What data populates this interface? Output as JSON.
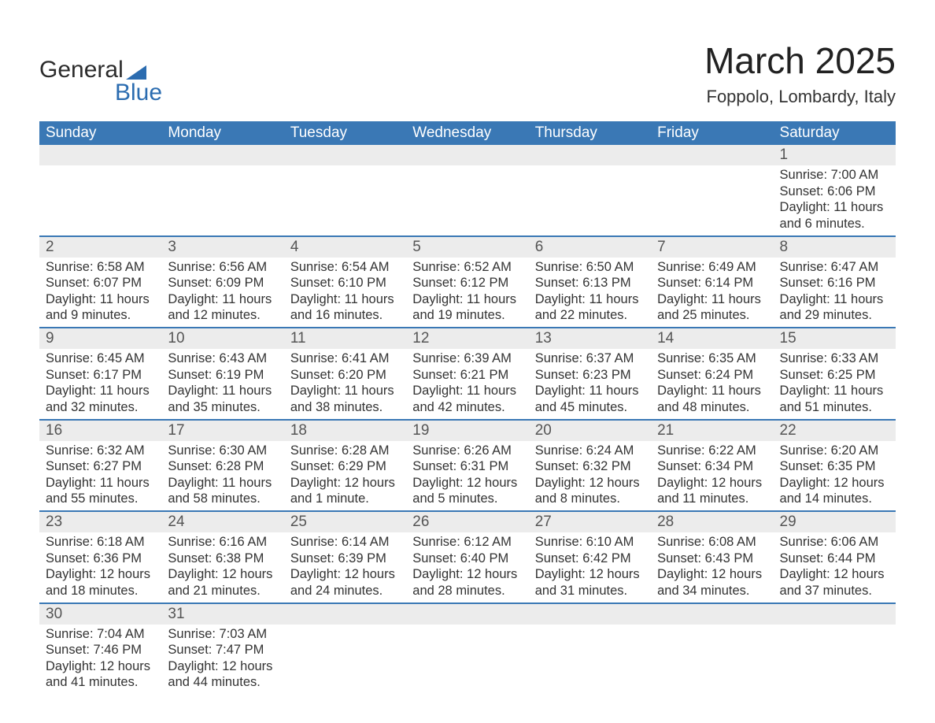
{
  "logo": {
    "word1": "General",
    "word2": "Blue"
  },
  "title": "March 2025",
  "location": "Foppolo, Lombardy, Italy",
  "colors": {
    "header_bg": "#3a78b5",
    "header_fg": "#ffffff",
    "daynum_bg": "#ececec",
    "row_divider": "#3a78b5",
    "logo_blue": "#2b6cb0",
    "text": "#333333",
    "background": "#ffffff"
  },
  "fonts": {
    "title_size_pt": 34,
    "location_size_pt": 16,
    "header_size_pt": 14,
    "body_size_pt": 12
  },
  "calendar": {
    "type": "table",
    "columns": [
      "Sunday",
      "Monday",
      "Tuesday",
      "Wednesday",
      "Thursday",
      "Friday",
      "Saturday"
    ],
    "weeks": [
      [
        null,
        null,
        null,
        null,
        null,
        null,
        {
          "n": "1",
          "sr": "7:00 AM",
          "ss": "6:06 PM",
          "dl": "11 hours and 6 minutes."
        }
      ],
      [
        {
          "n": "2",
          "sr": "6:58 AM",
          "ss": "6:07 PM",
          "dl": "11 hours and 9 minutes."
        },
        {
          "n": "3",
          "sr": "6:56 AM",
          "ss": "6:09 PM",
          "dl": "11 hours and 12 minutes."
        },
        {
          "n": "4",
          "sr": "6:54 AM",
          "ss": "6:10 PM",
          "dl": "11 hours and 16 minutes."
        },
        {
          "n": "5",
          "sr": "6:52 AM",
          "ss": "6:12 PM",
          "dl": "11 hours and 19 minutes."
        },
        {
          "n": "6",
          "sr": "6:50 AM",
          "ss": "6:13 PM",
          "dl": "11 hours and 22 minutes."
        },
        {
          "n": "7",
          "sr": "6:49 AM",
          "ss": "6:14 PM",
          "dl": "11 hours and 25 minutes."
        },
        {
          "n": "8",
          "sr": "6:47 AM",
          "ss": "6:16 PM",
          "dl": "11 hours and 29 minutes."
        }
      ],
      [
        {
          "n": "9",
          "sr": "6:45 AM",
          "ss": "6:17 PM",
          "dl": "11 hours and 32 minutes."
        },
        {
          "n": "10",
          "sr": "6:43 AM",
          "ss": "6:19 PM",
          "dl": "11 hours and 35 minutes."
        },
        {
          "n": "11",
          "sr": "6:41 AM",
          "ss": "6:20 PM",
          "dl": "11 hours and 38 minutes."
        },
        {
          "n": "12",
          "sr": "6:39 AM",
          "ss": "6:21 PM",
          "dl": "11 hours and 42 minutes."
        },
        {
          "n": "13",
          "sr": "6:37 AM",
          "ss": "6:23 PM",
          "dl": "11 hours and 45 minutes."
        },
        {
          "n": "14",
          "sr": "6:35 AM",
          "ss": "6:24 PM",
          "dl": "11 hours and 48 minutes."
        },
        {
          "n": "15",
          "sr": "6:33 AM",
          "ss": "6:25 PM",
          "dl": "11 hours and 51 minutes."
        }
      ],
      [
        {
          "n": "16",
          "sr": "6:32 AM",
          "ss": "6:27 PM",
          "dl": "11 hours and 55 minutes."
        },
        {
          "n": "17",
          "sr": "6:30 AM",
          "ss": "6:28 PM",
          "dl": "11 hours and 58 minutes."
        },
        {
          "n": "18",
          "sr": "6:28 AM",
          "ss": "6:29 PM",
          "dl": "12 hours and 1 minute."
        },
        {
          "n": "19",
          "sr": "6:26 AM",
          "ss": "6:31 PM",
          "dl": "12 hours and 5 minutes."
        },
        {
          "n": "20",
          "sr": "6:24 AM",
          "ss": "6:32 PM",
          "dl": "12 hours and 8 minutes."
        },
        {
          "n": "21",
          "sr": "6:22 AM",
          "ss": "6:34 PM",
          "dl": "12 hours and 11 minutes."
        },
        {
          "n": "22",
          "sr": "6:20 AM",
          "ss": "6:35 PM",
          "dl": "12 hours and 14 minutes."
        }
      ],
      [
        {
          "n": "23",
          "sr": "6:18 AM",
          "ss": "6:36 PM",
          "dl": "12 hours and 18 minutes."
        },
        {
          "n": "24",
          "sr": "6:16 AM",
          "ss": "6:38 PM",
          "dl": "12 hours and 21 minutes."
        },
        {
          "n": "25",
          "sr": "6:14 AM",
          "ss": "6:39 PM",
          "dl": "12 hours and 24 minutes."
        },
        {
          "n": "26",
          "sr": "6:12 AM",
          "ss": "6:40 PM",
          "dl": "12 hours and 28 minutes."
        },
        {
          "n": "27",
          "sr": "6:10 AM",
          "ss": "6:42 PM",
          "dl": "12 hours and 31 minutes."
        },
        {
          "n": "28",
          "sr": "6:08 AM",
          "ss": "6:43 PM",
          "dl": "12 hours and 34 minutes."
        },
        {
          "n": "29",
          "sr": "6:06 AM",
          "ss": "6:44 PM",
          "dl": "12 hours and 37 minutes."
        }
      ],
      [
        {
          "n": "30",
          "sr": "7:04 AM",
          "ss": "7:46 PM",
          "dl": "12 hours and 41 minutes."
        },
        {
          "n": "31",
          "sr": "7:03 AM",
          "ss": "7:47 PM",
          "dl": "12 hours and 44 minutes."
        },
        null,
        null,
        null,
        null,
        null
      ]
    ],
    "labels": {
      "sunrise": "Sunrise:",
      "sunset": "Sunset:",
      "daylight": "Daylight:"
    }
  }
}
